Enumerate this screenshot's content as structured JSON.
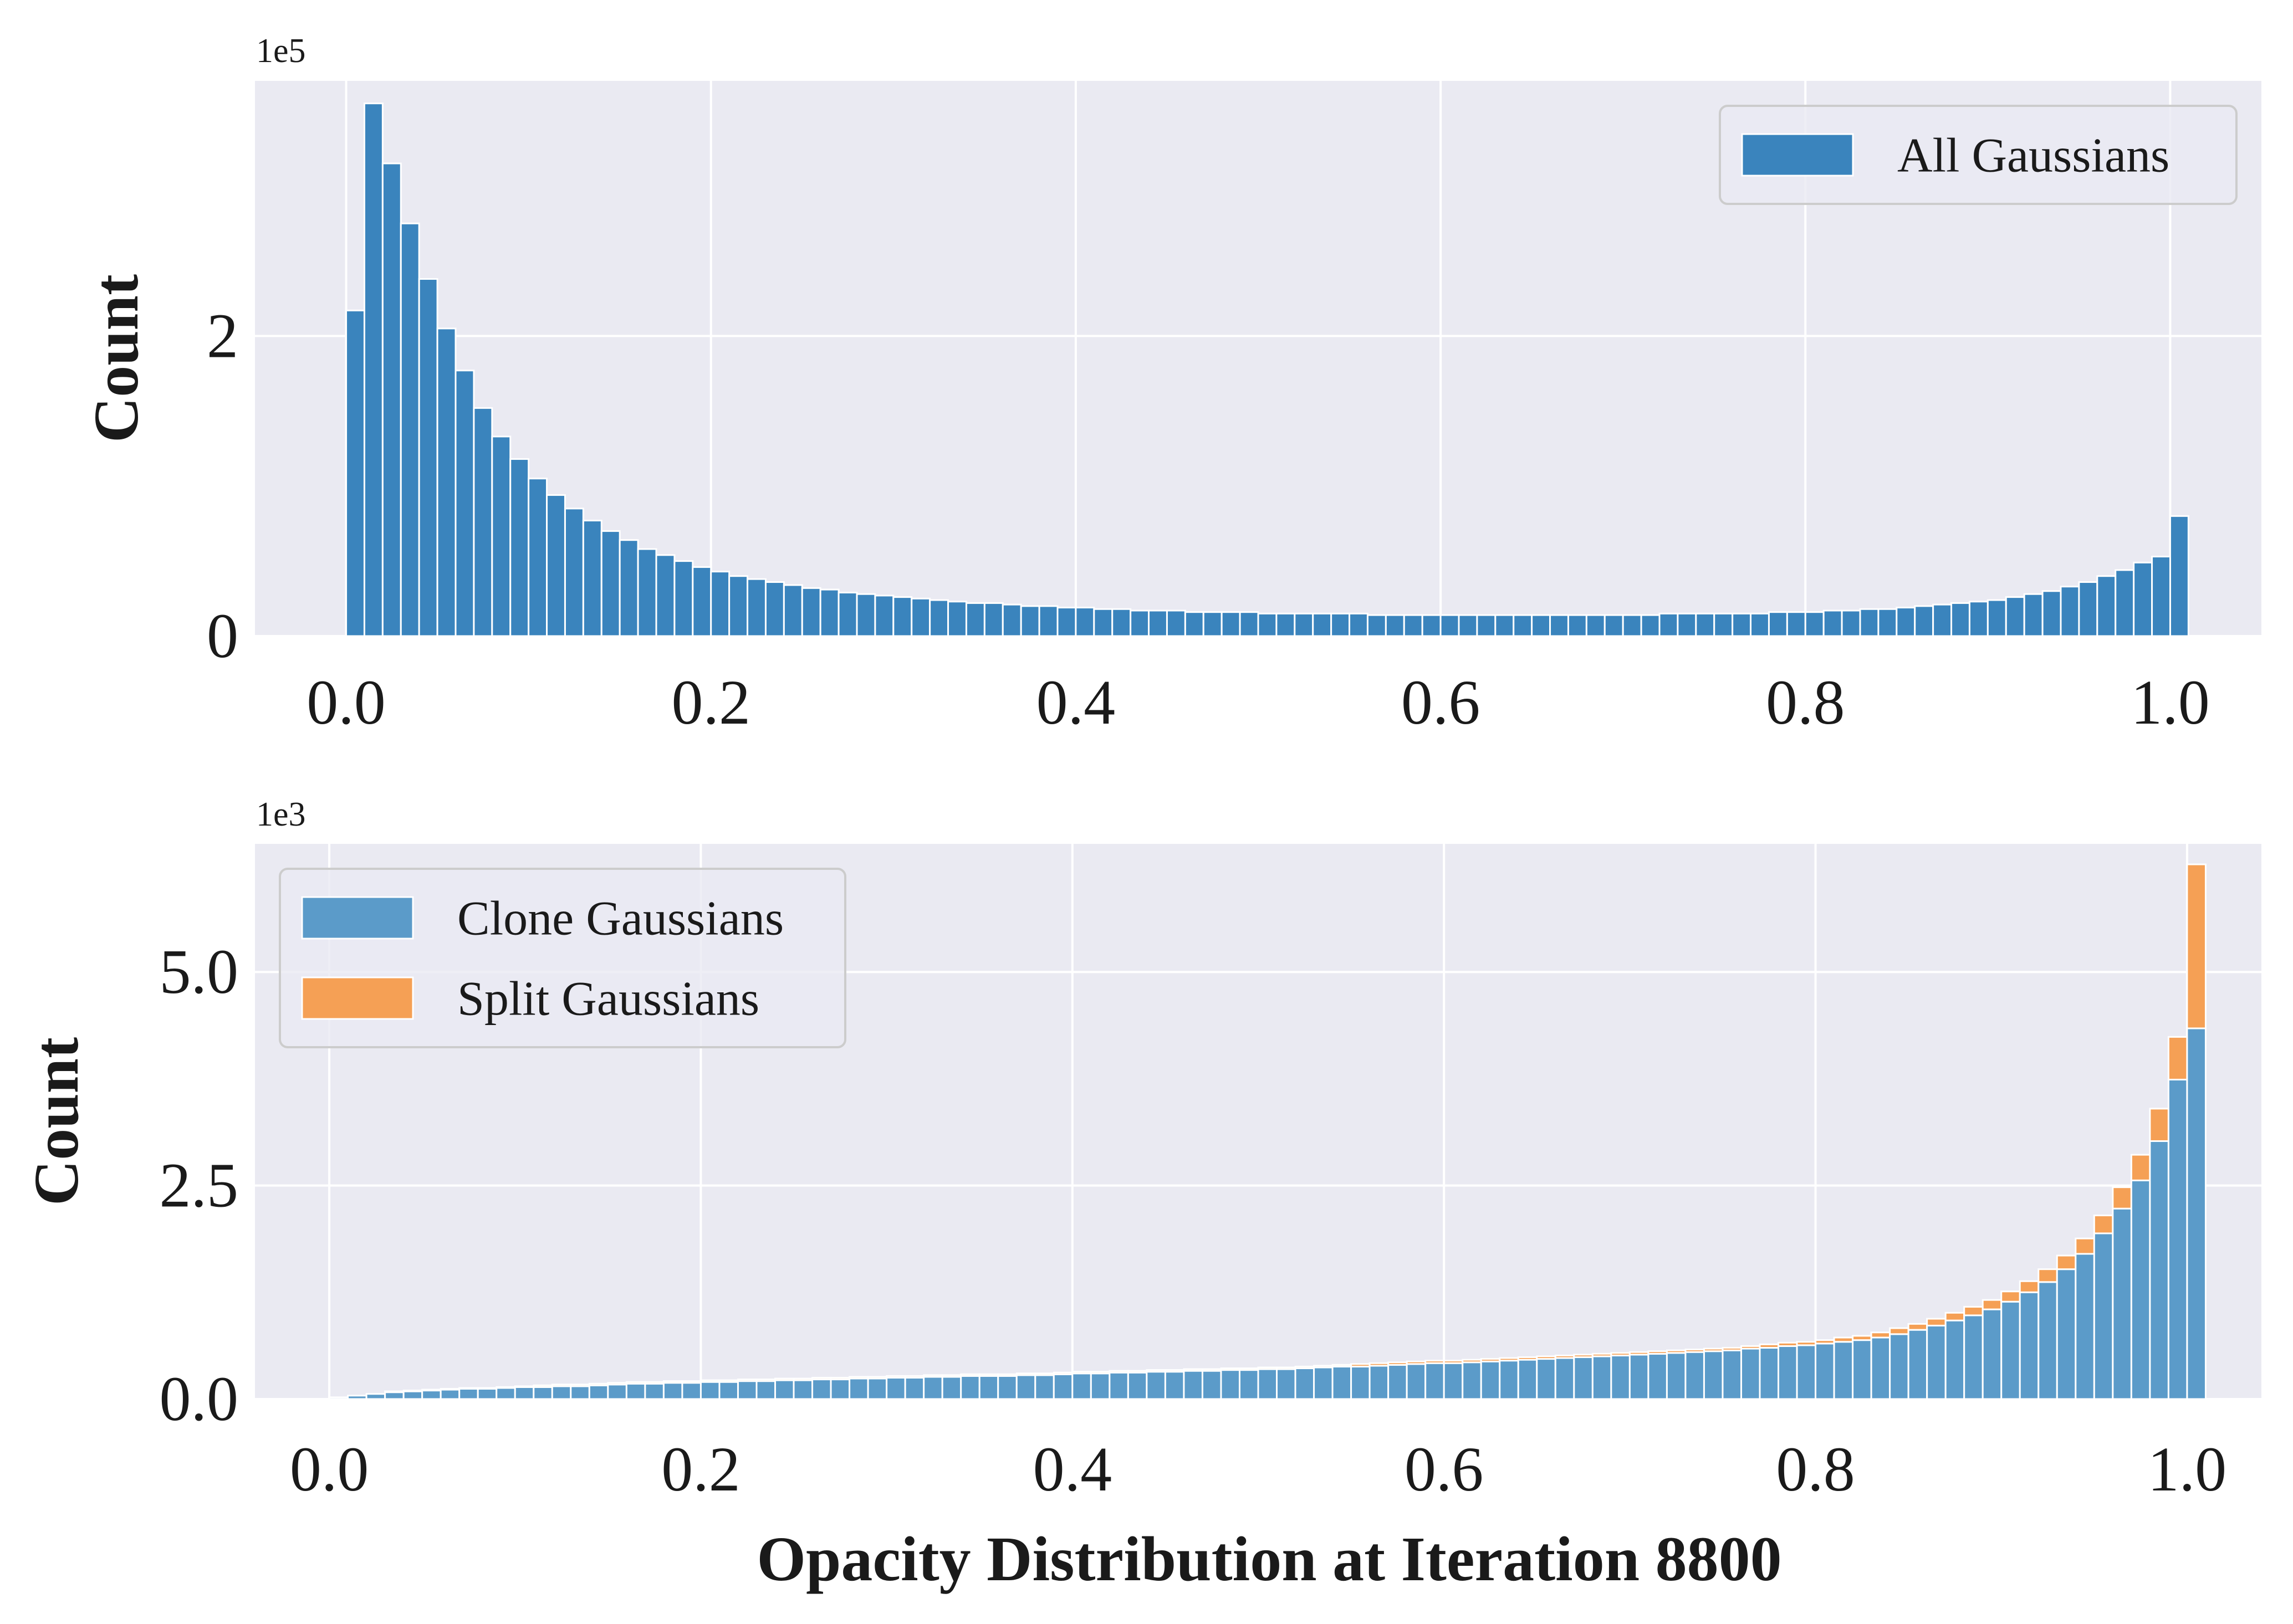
{
  "figure": {
    "xlabel": "Opacity Distribution at Iteration 8800"
  },
  "chart_data": [
    {
      "type": "bar",
      "subtype": "histogram",
      "ylabel": "Count",
      "y_multiplier": "1e5",
      "xlim": [
        -0.05,
        1.05
      ],
      "ylim": [
        0,
        3.7
      ],
      "xticks": [
        0.0,
        0.2,
        0.4,
        0.6,
        0.8,
        1.0
      ],
      "xtick_labels": [
        "0.0",
        "0.2",
        "0.4",
        "0.6",
        "0.8",
        "1.0"
      ],
      "yticks": [
        0,
        2
      ],
      "ytick_labels": [
        "0",
        "2"
      ],
      "grid": true,
      "legend_position": "top-right",
      "bin_width": 0.01,
      "bin_start": 0.0,
      "series": [
        {
          "name": "All Gaussians",
          "color": "#3a84bd",
          "values": [
            2.17,
            3.55,
            3.15,
            2.75,
            2.38,
            2.05,
            1.77,
            1.52,
            1.33,
            1.18,
            1.05,
            0.94,
            0.85,
            0.77,
            0.7,
            0.64,
            0.58,
            0.54,
            0.5,
            0.46,
            0.43,
            0.4,
            0.38,
            0.36,
            0.34,
            0.32,
            0.31,
            0.29,
            0.28,
            0.27,
            0.26,
            0.25,
            0.24,
            0.23,
            0.22,
            0.22,
            0.21,
            0.2,
            0.2,
            0.19,
            0.19,
            0.18,
            0.18,
            0.17,
            0.17,
            0.17,
            0.16,
            0.16,
            0.16,
            0.16,
            0.15,
            0.15,
            0.15,
            0.15,
            0.15,
            0.15,
            0.14,
            0.14,
            0.14,
            0.14,
            0.14,
            0.14,
            0.14,
            0.14,
            0.14,
            0.14,
            0.14,
            0.14,
            0.14,
            0.14,
            0.14,
            0.14,
            0.15,
            0.15,
            0.15,
            0.15,
            0.15,
            0.15,
            0.16,
            0.16,
            0.16,
            0.17,
            0.17,
            0.18,
            0.18,
            0.19,
            0.2,
            0.21,
            0.22,
            0.23,
            0.24,
            0.26,
            0.28,
            0.3,
            0.33,
            0.36,
            0.4,
            0.44,
            0.49,
            0.53,
            0.8
          ]
        }
      ]
    },
    {
      "type": "bar",
      "subtype": "stacked-histogram",
      "ylabel": "Count",
      "y_multiplier": "1e3",
      "xlim": [
        -0.04,
        1.04
      ],
      "ylim": [
        0,
        6.5
      ],
      "xticks": [
        0.0,
        0.2,
        0.4,
        0.6,
        0.8,
        1.0
      ],
      "xtick_labels": [
        "0.0",
        "0.2",
        "0.4",
        "0.6",
        "0.8",
        "1.0"
      ],
      "yticks": [
        0.0,
        2.5,
        5.0
      ],
      "ytick_labels": [
        "0.0",
        "2.5",
        "5.0"
      ],
      "grid": true,
      "legend_position": "top-left",
      "bin_width": 0.01,
      "bin_start": 0.0,
      "series": [
        {
          "name": "Clone Gaussians",
          "color": "#5b9bc9",
          "values": [
            0.02,
            0.04,
            0.06,
            0.08,
            0.09,
            0.1,
            0.11,
            0.12,
            0.12,
            0.13,
            0.14,
            0.14,
            0.15,
            0.15,
            0.16,
            0.17,
            0.18,
            0.18,
            0.19,
            0.19,
            0.2,
            0.2,
            0.21,
            0.21,
            0.22,
            0.22,
            0.23,
            0.23,
            0.24,
            0.24,
            0.25,
            0.25,
            0.26,
            0.26,
            0.27,
            0.27,
            0.27,
            0.28,
            0.28,
            0.29,
            0.3,
            0.3,
            0.31,
            0.31,
            0.32,
            0.32,
            0.33,
            0.33,
            0.34,
            0.34,
            0.35,
            0.35,
            0.36,
            0.37,
            0.38,
            0.38,
            0.39,
            0.4,
            0.41,
            0.42,
            0.42,
            0.43,
            0.44,
            0.45,
            0.46,
            0.47,
            0.48,
            0.49,
            0.5,
            0.51,
            0.52,
            0.53,
            0.54,
            0.55,
            0.56,
            0.57,
            0.59,
            0.6,
            0.62,
            0.63,
            0.65,
            0.67,
            0.69,
            0.72,
            0.76,
            0.81,
            0.86,
            0.92,
            0.98,
            1.05,
            1.14,
            1.25,
            1.37,
            1.52,
            1.7,
            1.94,
            2.23,
            2.56,
            3.02,
            3.74,
            4.34
          ]
        },
        {
          "name": "Split Gaussians",
          "color": "#f5a055",
          "values": [
            0.0,
            0.0,
            0.0,
            0.01,
            0.01,
            0.01,
            0.01,
            0.01,
            0.01,
            0.01,
            0.01,
            0.02,
            0.02,
            0.02,
            0.02,
            0.02,
            0.02,
            0.02,
            0.02,
            0.02,
            0.02,
            0.02,
            0.02,
            0.02,
            0.02,
            0.02,
            0.02,
            0.02,
            0.02,
            0.02,
            0.02,
            0.02,
            0.02,
            0.02,
            0.02,
            0.02,
            0.02,
            0.02,
            0.02,
            0.02,
            0.02,
            0.02,
            0.02,
            0.02,
            0.02,
            0.02,
            0.02,
            0.02,
            0.02,
            0.02,
            0.02,
            0.02,
            0.02,
            0.02,
            0.02,
            0.03,
            0.03,
            0.03,
            0.03,
            0.03,
            0.03,
            0.03,
            0.03,
            0.03,
            0.03,
            0.03,
            0.03,
            0.03,
            0.03,
            0.03,
            0.03,
            0.03,
            0.03,
            0.03,
            0.03,
            0.03,
            0.03,
            0.04,
            0.04,
            0.04,
            0.04,
            0.05,
            0.05,
            0.06,
            0.07,
            0.07,
            0.08,
            0.09,
            0.1,
            0.11,
            0.12,
            0.13,
            0.15,
            0.16,
            0.18,
            0.21,
            0.25,
            0.3,
            0.38,
            0.5,
            1.92
          ]
        }
      ]
    }
  ]
}
